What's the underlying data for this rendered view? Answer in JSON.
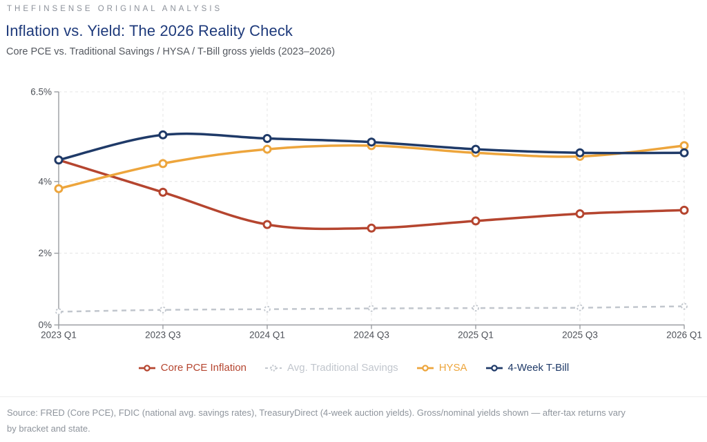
{
  "page": {
    "eyebrow": "THEFINSENSE ORIGINAL ANALYSIS",
    "title": "Inflation vs. Yield: The 2026 Reality Check",
    "subtitle": "Core PCE vs. Traditional Savings / HYSA / T-Bill gross yields (2023–2026)",
    "footer_line1": "Source: FRED (Core PCE), FDIC (national avg. savings rates), TreasuryDirect (4-week auction yields). Gross/nominal yields shown — after-tax returns vary",
    "footer_line2": "by bracket and state."
  },
  "colors": {
    "title": "#1e3a7b",
    "eyebrow": "#8b9099",
    "axis": "#9a9da1",
    "tick_label": "#4d5158",
    "gridline": "#e4e4e4",
    "divider": "#ececec",
    "footer_text": "#8e949c"
  },
  "chart_data": {
    "type": "line",
    "title": "Inflation vs. Yield: The 2026 Reality Check",
    "subtitle": "Core PCE vs. Traditional Savings / HYSA / T-Bill gross yields (2023–2026)",
    "categories": [
      "2023 Q1",
      "2023 Q3",
      "2024 Q1",
      "2024 Q3",
      "2025 Q1",
      "2025 Q3",
      "2026 Q1"
    ],
    "series": [
      {
        "name": "Core PCE Inflation",
        "color": "#b5452f",
        "dashed": false,
        "values": [
          4.6,
          3.7,
          2.8,
          2.7,
          2.9,
          3.1,
          3.2
        ]
      },
      {
        "name": "Avg. Traditional Savings",
        "color": "#c1c6cd",
        "dashed": true,
        "values": [
          0.37,
          0.42,
          0.44,
          0.46,
          0.47,
          0.48,
          0.52
        ]
      },
      {
        "name": "HYSA",
        "color": "#eda53c",
        "dashed": false,
        "values": [
          3.8,
          4.5,
          4.9,
          5.0,
          4.8,
          4.7,
          5.0
        ]
      },
      {
        "name": "4-Week T-Bill",
        "color": "#1f3a68",
        "dashed": false,
        "values": [
          4.6,
          5.3,
          5.2,
          5.1,
          4.9,
          4.8,
          4.8
        ]
      }
    ],
    "xlabel": "",
    "ylabel": "",
    "ylim": [
      0,
      6.5
    ],
    "yticks": [
      {
        "v": 0,
        "label": "0%"
      },
      {
        "v": 2,
        "label": "2%"
      },
      {
        "v": 4,
        "label": "4%"
      },
      {
        "v": 6.5,
        "label": "6.5%"
      }
    ],
    "grid_y_values": [
      2,
      4,
      6.5
    ],
    "grid": "dashed",
    "legend_position": "bottom",
    "marker": "open-circle"
  }
}
